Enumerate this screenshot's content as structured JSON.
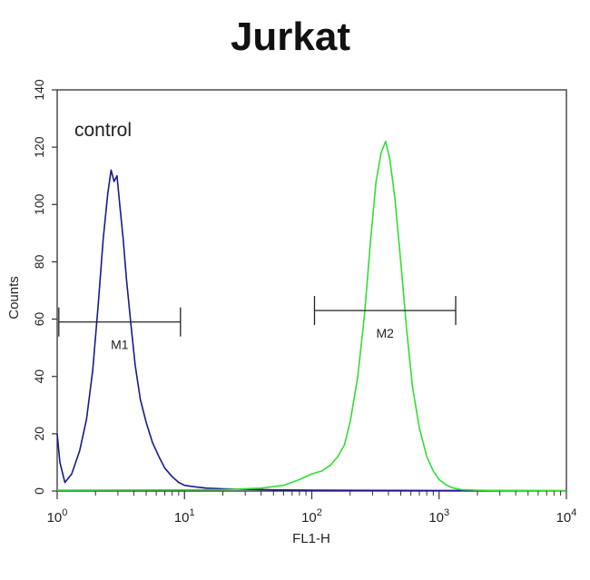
{
  "chart_data": {
    "type": "line",
    "title": "Jurkat",
    "xlabel": "FL1-H",
    "ylabel": "Counts",
    "x_scale": "log",
    "xlim": [
      1,
      10000
    ],
    "ylim": [
      0,
      140
    ],
    "xticks": [
      {
        "base": "10",
        "exp": "0"
      },
      {
        "base": "10",
        "exp": "1"
      },
      {
        "base": "10",
        "exp": "2"
      },
      {
        "base": "10",
        "exp": "3"
      },
      {
        "base": "10",
        "exp": "4"
      }
    ],
    "yticks": [
      "0",
      "20",
      "40",
      "60",
      "80",
      "100",
      "120",
      "140"
    ],
    "annotation": "control",
    "gates": [
      {
        "label": "M1",
        "x_start": 1.03,
        "x_end": 9.3,
        "y": 59
      },
      {
        "label": "M2",
        "x_start": 105,
        "x_end": 1350,
        "y": 63
      }
    ],
    "series": [
      {
        "color": "#1a1a8c",
        "x": [
          1,
          1.05,
          1.15,
          1.3,
          1.5,
          1.7,
          1.9,
          2.1,
          2.3,
          2.5,
          2.65,
          2.8,
          2.95,
          3.1,
          3.3,
          3.5,
          3.8,
          4.1,
          4.5,
          5.0,
          5.6,
          6.3,
          7.0,
          8.0,
          9.0,
          10.0,
          12,
          15,
          20,
          30,
          50,
          100,
          1000,
          10000
        ],
        "values": [
          20,
          10,
          3,
          6,
          14,
          25,
          42,
          65,
          88,
          104,
          112,
          108,
          110,
          100,
          88,
          74,
          58,
          44,
          32,
          24,
          17,
          12,
          8,
          5,
          3,
          2,
          1.5,
          1,
          0.8,
          0.6,
          0.4,
          0.3,
          0.2,
          0.1
        ]
      },
      {
        "color": "#33dd33",
        "x": [
          1,
          10,
          20,
          40,
          60,
          80,
          100,
          120,
          140,
          160,
          180,
          200,
          230,
          260,
          290,
          320,
          350,
          380,
          410,
          450,
          500,
          560,
          620,
          700,
          800,
          900,
          1000,
          1150,
          1300,
          1500,
          2000,
          3000,
          10000
        ],
        "values": [
          0.3,
          0.4,
          0.5,
          1,
          2,
          4,
          6,
          7,
          9,
          12,
          16,
          24,
          40,
          62,
          88,
          108,
          118,
          122,
          116,
          102,
          80,
          55,
          36,
          22,
          12,
          7,
          4,
          2,
          1,
          0.5,
          0.3,
          0.2,
          0.1
        ]
      }
    ]
  }
}
